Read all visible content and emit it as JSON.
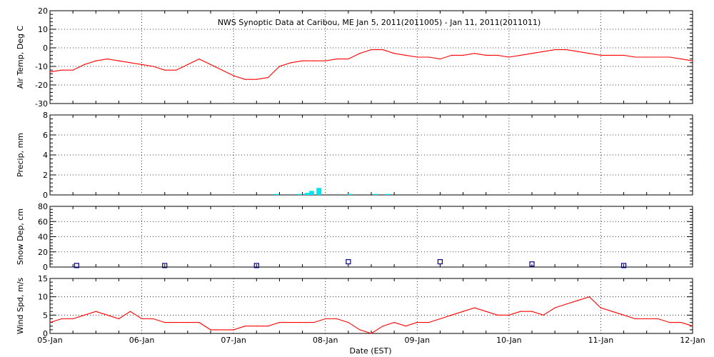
{
  "chart_data": {
    "type": "line",
    "title": "NWS Synoptic Data at Caribou, ME   Jan  5, 2011(2011005) - Jan 11, 2011(2011011)",
    "xlabel": "Date (EST)",
    "x_ticks": [
      "05-Jan",
      "06-Jan",
      "07-Jan",
      "08-Jan",
      "09-Jan",
      "10-Jan",
      "11-Jan",
      "12-Jan"
    ],
    "xlim": [
      0,
      7
    ],
    "grid": true,
    "colors": {
      "line": "#ff0000",
      "precip": "#00e5ee",
      "snow": "#000080"
    },
    "panels": [
      {
        "name": "air-temp",
        "type": "line",
        "ylabel": "Air Temp, Deg C",
        "ylim": [
          -30,
          20
        ],
        "yticks": [
          -30,
          -20,
          -10,
          0,
          10,
          20
        ],
        "x": [
          0,
          0.125,
          0.25,
          0.375,
          0.5,
          0.625,
          0.75,
          0.875,
          1,
          1.125,
          1.25,
          1.375,
          1.5,
          1.625,
          1.75,
          1.875,
          2,
          2.125,
          2.25,
          2.375,
          2.5,
          2.625,
          2.75,
          2.875,
          3,
          3.125,
          3.25,
          3.375,
          3.5,
          3.625,
          3.75,
          3.875,
          4,
          4.125,
          4.25,
          4.375,
          4.5,
          4.625,
          4.75,
          4.875,
          5,
          5.125,
          5.25,
          5.375,
          5.5,
          5.625,
          5.75,
          5.875,
          6,
          6.125,
          6.25,
          6.375,
          6.5,
          6.625,
          6.75,
          6.875,
          7
        ],
        "values": [
          -13,
          -12,
          -12,
          -9,
          -7,
          -6,
          -7,
          -8,
          -9,
          -10,
          -12,
          -12,
          -9,
          -6,
          -9,
          -12,
          -15,
          -17,
          -17,
          -16,
          -10,
          -8,
          -7,
          -7,
          -7,
          -6,
          -6,
          -3,
          -1,
          -1,
          -3,
          -4,
          -5,
          -5,
          -6,
          -4,
          -4,
          -3,
          -4,
          -4,
          -5,
          -4,
          -3,
          -2,
          -1,
          -1,
          -2,
          -3,
          -4,
          -4,
          -4,
          -5,
          -5,
          -5,
          -5,
          -6,
          -7
        ]
      },
      {
        "name": "precip",
        "type": "bar",
        "ylabel": "Precip, mm",
        "ylim": [
          0,
          8
        ],
        "yticks": [
          0,
          2,
          4,
          6,
          8
        ],
        "x": [
          2.47,
          2.72,
          2.8,
          2.85,
          2.93,
          3.27,
          3.55,
          3.68
        ],
        "values": [
          0.1,
          0.1,
          0.2,
          0.4,
          0.7,
          0.1,
          0.1,
          0.1
        ]
      },
      {
        "name": "snow-depth",
        "type": "scatter",
        "ylabel": "Snow Dep, cm",
        "ylim": [
          0,
          80
        ],
        "yticks": [
          0,
          20,
          40,
          60,
          80
        ],
        "x": [
          0.29,
          1.25,
          2.25,
          3.25,
          4.25,
          5.25,
          6.25
        ],
        "values": [
          2,
          2,
          2,
          7,
          7,
          4,
          2
        ]
      },
      {
        "name": "wind-speed",
        "type": "line",
        "ylabel": "Wind Spd, m/s",
        "ylim": [
          0,
          15
        ],
        "yticks": [
          0,
          5,
          10,
          15
        ],
        "x": [
          0,
          0.125,
          0.25,
          0.375,
          0.5,
          0.625,
          0.75,
          0.875,
          1,
          1.125,
          1.25,
          1.375,
          1.5,
          1.625,
          1.75,
          1.875,
          2,
          2.125,
          2.25,
          2.375,
          2.5,
          2.625,
          2.75,
          2.875,
          3,
          3.125,
          3.25,
          3.375,
          3.5,
          3.625,
          3.75,
          3.875,
          4,
          4.125,
          4.25,
          4.375,
          4.5,
          4.625,
          4.75,
          4.875,
          5,
          5.125,
          5.25,
          5.375,
          5.5,
          5.625,
          5.75,
          5.875,
          6,
          6.125,
          6.25,
          6.375,
          6.5,
          6.625,
          6.75,
          6.875,
          7
        ],
        "values": [
          3,
          4,
          4,
          5,
          6,
          5,
          4,
          6,
          4,
          4,
          3,
          3,
          3,
          3,
          1,
          1,
          1,
          2,
          2,
          2,
          3,
          3,
          3,
          3,
          4,
          4,
          3,
          1,
          0,
          2,
          3,
          2,
          3,
          3,
          4,
          5,
          6,
          7,
          6,
          5,
          5,
          6,
          6,
          5,
          7,
          8,
          9,
          10,
          7,
          6,
          5,
          4,
          4,
          4,
          3,
          3,
          2
        ]
      }
    ]
  }
}
